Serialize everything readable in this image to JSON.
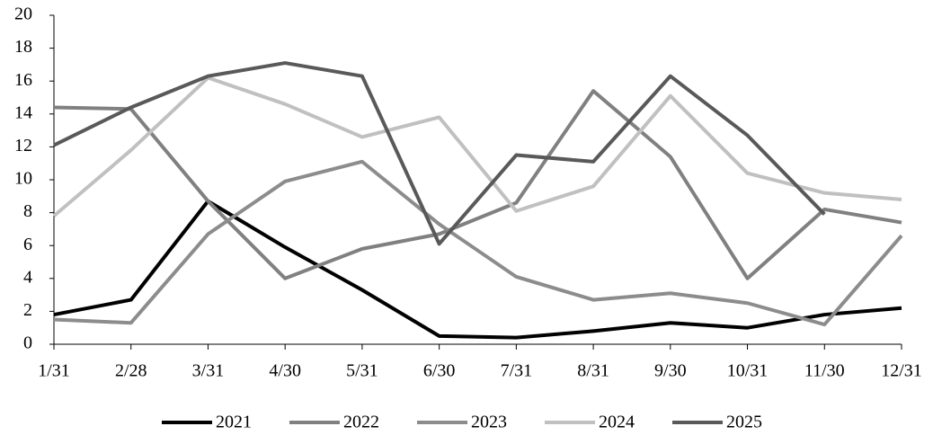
{
  "chart_data": {
    "type": "line",
    "categories": [
      "1/31",
      "2/28",
      "3/31",
      "4/30",
      "5/31",
      "6/30",
      "7/31",
      "8/31",
      "9/30",
      "10/31",
      "11/30",
      "12/31"
    ],
    "series": [
      {
        "name": "2021",
        "color": "#000000",
        "values": [
          1.8,
          2.7,
          8.7,
          5.9,
          3.3,
          0.5,
          0.4,
          0.8,
          1.3,
          1.0,
          1.8,
          2.2
        ]
      },
      {
        "name": "2022",
        "color": "#808080",
        "values": [
          14.4,
          14.3,
          8.7,
          4.0,
          5.8,
          6.7,
          8.6,
          15.4,
          11.4,
          4.0,
          8.2,
          7.4
        ]
      },
      {
        "name": "2023",
        "color": "#8c8c8c",
        "values": [
          1.5,
          1.3,
          6.7,
          9.9,
          11.1,
          7.3,
          4.1,
          2.7,
          3.1,
          2.5,
          1.2,
          6.6
        ]
      },
      {
        "name": "2024",
        "color": "#c0c0c0",
        "values": [
          7.8,
          11.8,
          16.2,
          14.6,
          12.6,
          13.8,
          8.1,
          9.6,
          15.1,
          10.4,
          9.2,
          8.8
        ]
      },
      {
        "name": "2025",
        "color": "#595959",
        "values": [
          12.1,
          14.4,
          16.3,
          17.1,
          16.3,
          6.1,
          11.5,
          11.1,
          16.3,
          12.7,
          7.9,
          null
        ]
      }
    ],
    "ylim": [
      0,
      20
    ],
    "yticks": [
      0,
      2,
      4,
      6,
      8,
      10,
      12,
      14,
      16,
      18,
      20
    ],
    "grid": false,
    "legend": "bottom"
  }
}
